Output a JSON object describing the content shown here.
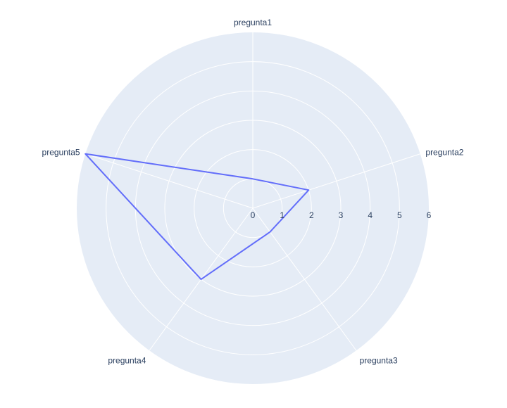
{
  "chart_data": {
    "type": "radar",
    "categories": [
      "pregunta1",
      "pregunta2",
      "pregunta3",
      "pregunta4",
      "pregunta5"
    ],
    "series": [
      {
        "values": [
          1,
          2,
          1,
          3,
          6
        ],
        "color": "#636efa"
      }
    ],
    "radial_range": [
      0,
      6
    ],
    "radial_ticks": [
      "0",
      "1",
      "2",
      "3",
      "4",
      "5",
      "6"
    ],
    "grid": true,
    "colors": {
      "polar_background": "#e5ecf6",
      "grid": "#ffffff",
      "text": "#2a3f5f"
    }
  }
}
